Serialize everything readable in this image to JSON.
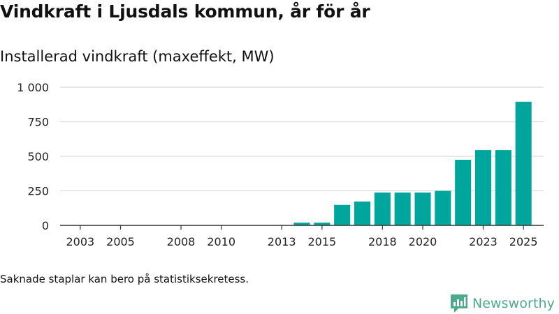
{
  "title": "Vindkraft i Ljusdals kommun, år för år",
  "subtitle": "Installerad vindkraft (maxeffekt, MW)",
  "footnote": "Saknade staplar kan bero på statistiksekretess.",
  "brand": {
    "name": "Newsworthy",
    "icon": "newsworthy-logo-icon",
    "color": "#4caa8c"
  },
  "colors": {
    "bar": "#00a69c",
    "grid": "#d9d9d9",
    "axis": "#333333",
    "text": "#222222"
  },
  "chart_data": {
    "type": "bar",
    "title": "Installerad vindkraft (maxeffekt, MW)",
    "xlabel": "",
    "ylabel": "",
    "ylim": [
      0,
      1000
    ],
    "yticks": [
      0,
      250,
      500,
      750,
      1000
    ],
    "ytick_labels": [
      "0",
      "250",
      "500",
      "750",
      "1 000"
    ],
    "xlim": [
      2002,
      2026
    ],
    "xticks": [
      2003,
      2005,
      2008,
      2010,
      2013,
      2015,
      2018,
      2020,
      2023,
      2025
    ],
    "grid": true,
    "legend": "none",
    "categories": [
      2014,
      2015,
      2016,
      2017,
      2018,
      2019,
      2020,
      2021,
      2022,
      2023,
      2024,
      2025
    ],
    "values": [
      20,
      20,
      148,
      173,
      238,
      238,
      238,
      250,
      475,
      545,
      545,
      895
    ]
  }
}
